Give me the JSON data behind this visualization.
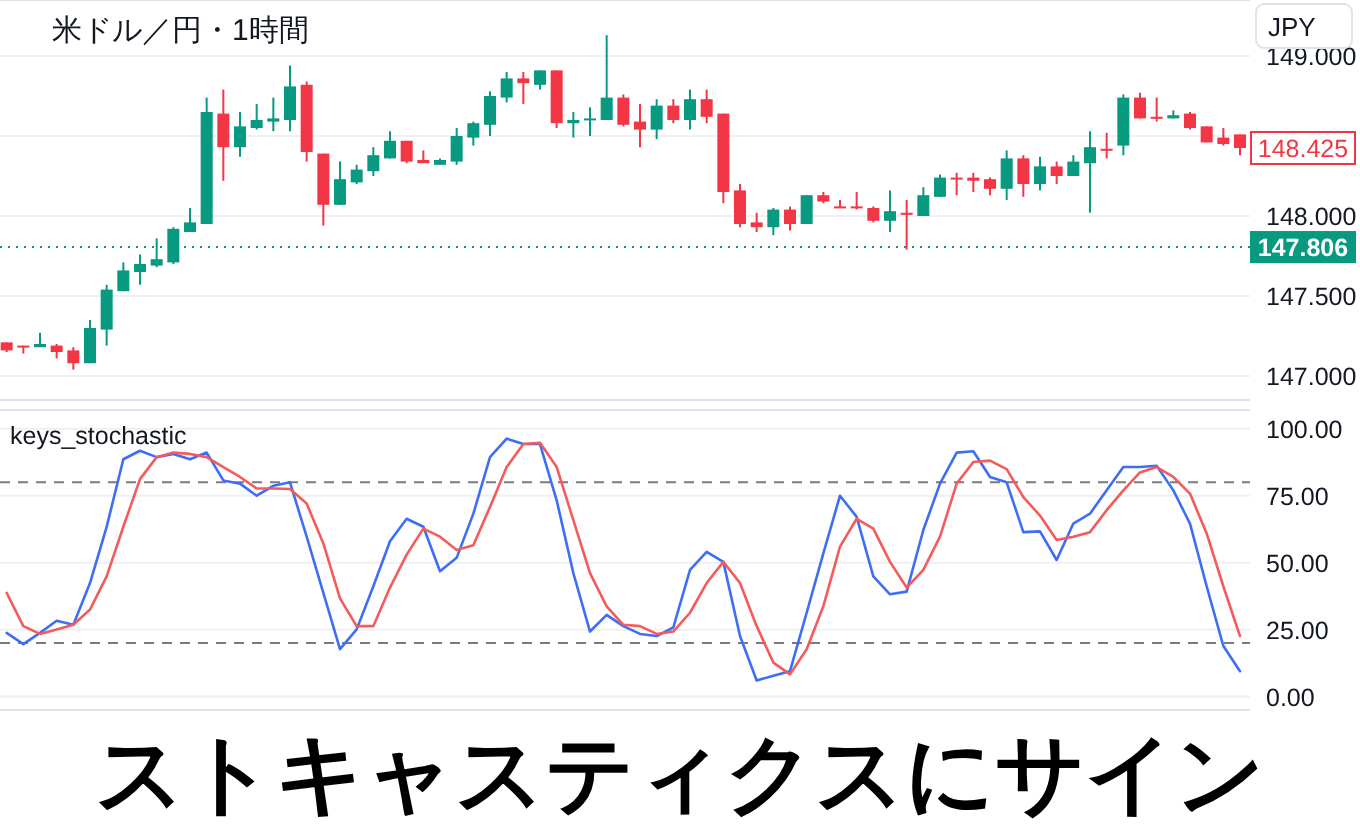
{
  "chart_data": [
    {
      "type": "candlestick",
      "title": "米ドル／円・1時間",
      "categories": [
        null,
        null,
        null,
        null,
        null,
        null,
        null,
        null,
        null,
        null,
        null,
        null,
        null,
        null,
        null,
        null,
        null,
        null,
        null,
        null,
        null,
        null,
        null,
        null,
        null,
        null,
        null,
        null,
        null,
        null,
        null,
        null,
        null,
        null,
        null,
        null,
        null,
        null,
        null,
        null,
        null,
        null,
        null,
        null,
        null,
        null,
        null,
        null,
        null,
        null,
        null,
        null,
        null,
        null,
        null,
        null,
        null,
        null,
        null,
        null,
        null,
        null,
        null,
        null,
        null,
        null,
        null,
        null,
        null,
        null,
        null,
        null,
        null,
        null,
        null
      ],
      "ohlc": [
        [
          147.21,
          147.21,
          147.15,
          147.16
        ],
        [
          147.19,
          147.19,
          147.14,
          147.18
        ],
        [
          147.18,
          147.27,
          147.18,
          147.2
        ],
        [
          147.19,
          147.2,
          147.11,
          147.15
        ],
        [
          147.16,
          147.18,
          147.04,
          147.08
        ],
        [
          147.08,
          147.35,
          147.08,
          147.3
        ],
        [
          147.29,
          147.57,
          147.19,
          147.54
        ],
        [
          147.53,
          147.71,
          147.53,
          147.66
        ],
        [
          147.65,
          147.76,
          147.57,
          147.7
        ],
        [
          147.69,
          147.86,
          147.68,
          147.73
        ],
        [
          147.71,
          147.93,
          147.7,
          147.92
        ],
        [
          147.9,
          148.05,
          147.9,
          147.96
        ],
        [
          147.95,
          148.74,
          147.95,
          148.65
        ],
        [
          148.64,
          148.79,
          148.22,
          148.43
        ],
        [
          148.43,
          148.65,
          148.37,
          148.56
        ],
        [
          148.55,
          148.7,
          148.54,
          148.6
        ],
        [
          148.59,
          148.74,
          148.53,
          148.61
        ],
        [
          148.6,
          148.94,
          148.53,
          148.81
        ],
        [
          148.82,
          148.84,
          148.34,
          148.4
        ],
        [
          148.39,
          148.39,
          147.94,
          148.07
        ],
        [
          148.07,
          148.34,
          148.07,
          148.23
        ],
        [
          148.21,
          148.32,
          148.2,
          148.29
        ],
        [
          148.28,
          148.43,
          148.25,
          148.38
        ],
        [
          148.36,
          148.53,
          148.36,
          148.47
        ],
        [
          148.47,
          148.47,
          148.33,
          148.34
        ],
        [
          148.35,
          148.41,
          148.33,
          148.33
        ],
        [
          148.32,
          148.36,
          148.32,
          148.35
        ],
        [
          148.34,
          148.55,
          148.32,
          148.5
        ],
        [
          148.49,
          148.59,
          148.44,
          148.58
        ],
        [
          148.57,
          148.78,
          148.5,
          148.75
        ],
        [
          148.74,
          148.9,
          148.71,
          148.86
        ],
        [
          148.86,
          148.9,
          148.7,
          148.83
        ],
        [
          148.82,
          148.91,
          148.79,
          148.91
        ],
        [
          148.91,
          148.91,
          148.55,
          148.58
        ],
        [
          148.58,
          148.65,
          148.49,
          148.6
        ],
        [
          148.6,
          148.68,
          148.5,
          148.61
        ],
        [
          148.6,
          149.13,
          148.6,
          148.74
        ],
        [
          148.74,
          148.76,
          148.56,
          148.57
        ],
        [
          148.59,
          148.7,
          148.43,
          148.54
        ],
        [
          148.54,
          148.73,
          148.48,
          148.69
        ],
        [
          148.69,
          148.73,
          148.58,
          148.6
        ],
        [
          148.6,
          148.79,
          148.54,
          148.73
        ],
        [
          148.73,
          148.79,
          148.58,
          148.62
        ],
        [
          148.64,
          148.64,
          148.08,
          148.15
        ],
        [
          148.16,
          148.2,
          147.93,
          147.95
        ],
        [
          147.96,
          148.02,
          147.9,
          147.93
        ],
        [
          147.93,
          148.05,
          147.88,
          148.04
        ],
        [
          148.04,
          148.06,
          147.91,
          147.95
        ],
        [
          147.95,
          148.13,
          147.95,
          148.13
        ],
        [
          148.13,
          148.15,
          148.08,
          148.09
        ],
        [
          148.06,
          148.1,
          148.05,
          148.05
        ],
        [
          148.06,
          148.15,
          148.04,
          148.05
        ],
        [
          148.05,
          148.06,
          147.96,
          147.97
        ],
        [
          147.97,
          148.16,
          147.9,
          148.03
        ],
        [
          148.02,
          148.1,
          147.79,
          148.01
        ],
        [
          148.0,
          148.18,
          148.0,
          148.13
        ],
        [
          148.12,
          148.26,
          148.12,
          148.24
        ],
        [
          148.24,
          148.27,
          148.13,
          148.23
        ],
        [
          148.24,
          148.27,
          148.15,
          148.22
        ],
        [
          148.23,
          148.24,
          148.13,
          148.17
        ],
        [
          148.17,
          148.41,
          148.1,
          148.36
        ],
        [
          148.36,
          148.38,
          148.12,
          148.2
        ],
        [
          148.2,
          148.37,
          148.16,
          148.31
        ],
        [
          148.31,
          148.34,
          148.2,
          148.25
        ],
        [
          148.25,
          148.38,
          148.25,
          148.34
        ],
        [
          148.33,
          148.53,
          148.02,
          148.43
        ],
        [
          148.42,
          148.52,
          148.36,
          148.41
        ],
        [
          148.44,
          148.76,
          148.38,
          148.74
        ],
        [
          148.74,
          148.77,
          148.61,
          148.61
        ],
        [
          148.62,
          148.74,
          148.59,
          148.61
        ],
        [
          148.61,
          148.66,
          148.61,
          148.63
        ],
        [
          148.64,
          148.65,
          148.54,
          148.55
        ],
        [
          148.56,
          148.56,
          148.46,
          148.46
        ],
        [
          148.49,
          148.55,
          148.44,
          148.45
        ],
        [
          148.51,
          148.51,
          148.38,
          148.425
        ]
      ],
      "colors": [
        "#f23645",
        "#f23645",
        "#089981",
        "#f23645",
        "#f23645",
        "#089981",
        "#089981",
        "#089981",
        "#089981",
        "#089981",
        "#089981",
        "#089981",
        "#089981",
        "#f23645",
        "#089981",
        "#089981",
        "#089981",
        "#089981",
        "#f23645",
        "#f23645",
        "#089981",
        "#089981",
        "#089981",
        "#089981",
        "#f23645",
        "#f23645",
        "#089981",
        "#089981",
        "#089981",
        "#089981",
        "#089981",
        "#f23645",
        "#089981",
        "#f23645",
        "#089981",
        "#089981",
        "#089981",
        "#f23645",
        "#f23645",
        "#089981",
        "#f23645",
        "#089981",
        "#f23645",
        "#f23645",
        "#f23645",
        "#f23645",
        "#089981",
        "#f23645",
        "#089981",
        "#f23645",
        "#f23645",
        "#f23645",
        "#f23645",
        "#089981",
        "#f23645",
        "#089981",
        "#089981",
        "#f23645",
        "#f23645",
        "#f23645",
        "#089981",
        "#f23645",
        "#089981",
        "#f23645",
        "#089981",
        "#089981",
        "#f23645",
        "#089981",
        "#f23645",
        "#f23645",
        "#089981",
        "#f23645",
        "#f23645",
        "#f23645",
        "#f23645"
      ],
      "ylim": [
        146.85,
        149.35
      ],
      "yticks": [
        {
          "value": 147,
          "label": "147.000"
        },
        {
          "value": 147.5,
          "label": "147.500"
        },
        {
          "value": 148,
          "label": "148.000"
        },
        {
          "value": 148.5,
          "label": null
        },
        {
          "value": 149,
          "label": "149.000"
        }
      ],
      "ref_lines": [
        {
          "axis": "y",
          "value": 147.806,
          "label": "147.806",
          "color": "#089981",
          "line_style": "dotted"
        }
      ],
      "annotations": [
        "148.425",
        "JPY"
      ],
      "grid": "y",
      "tick_labels": "y"
    },
    {
      "type": "line",
      "title": "keys_stochastic",
      "categories": [
        null,
        null,
        null,
        null,
        null,
        null,
        null,
        null,
        null,
        null,
        null,
        null,
        null,
        null,
        null,
        null,
        null,
        null,
        null,
        null,
        null,
        null,
        null,
        null,
        null,
        null,
        null,
        null,
        null,
        null,
        null,
        null,
        null,
        null,
        null,
        null,
        null,
        null,
        null,
        null,
        null,
        null,
        null,
        null,
        null,
        null,
        null,
        null,
        null,
        null,
        null,
        null,
        null,
        null,
        null,
        null,
        null,
        null,
        null,
        null,
        null,
        null,
        null,
        null,
        null,
        null,
        null,
        null,
        null,
        null,
        null,
        null,
        null,
        null,
        null
      ],
      "series": [
        {
          "color": "#3d6ef5",
          "values": [
            23.8,
            19.6,
            23.8,
            28.3,
            26.8,
            42.4,
            63.4,
            88.6,
            91.8,
            89.4,
            90.6,
            88.6,
            91.1,
            80.7,
            79.5,
            75,
            78.7,
            80,
            59.7,
            38.7,
            17.7,
            25.1,
            41.2,
            58,
            66.4,
            63.4,
            46.8,
            51.8,
            68.3,
            89.4,
            96.3,
            94.3,
            94.3,
            73.3,
            46.1,
            24.3,
            30.5,
            26.3,
            23.4,
            22.6,
            25.8,
            47.3,
            54,
            50.3,
            22.6,
            6,
            7.8,
            9.5,
            31.3,
            53.5,
            75,
            67.1,
            44.9,
            38.2,
            39.2,
            62.2,
            79.5,
            91.1,
            91.6,
            82,
            80,
            61.4,
            61.7,
            51,
            64.6,
            68.3,
            77,
            85.7,
            85.7,
            86.2,
            77,
            64.6,
            41.2,
            18.9,
            9.5
          ]
        },
        {
          "color": "#f45b5b",
          "values": [
            38.7,
            26.3,
            23.4,
            25.1,
            26.8,
            32.5,
            44.9,
            63.4,
            81.2,
            89.4,
            91.1,
            90.6,
            89.4,
            85.7,
            82,
            77.7,
            77.7,
            77.5,
            72.1,
            57.2,
            36.7,
            26.3,
            26.3,
            40.7,
            53,
            62.7,
            59.7,
            54.7,
            56.5,
            70.8,
            85.7,
            94.3,
            94.8,
            85.7,
            65.9,
            46.1,
            33.7,
            26.8,
            26.3,
            23.4,
            24.3,
            31.3,
            42.4,
            50.3,
            42.4,
            26.3,
            12.7,
            8.3,
            17.7,
            33.7,
            56,
            66.4,
            62.7,
            50.3,
            40.7,
            47.3,
            59.7,
            79.5,
            87.6,
            88.1,
            84.9,
            74.5,
            67.6,
            58.5,
            59.7,
            61.4,
            69.6,
            77,
            83.7,
            85.7,
            82,
            75.8,
            60.9,
            41.2,
            22.6
          ]
        }
      ],
      "ylim": [
        -5,
        107
      ],
      "yticks": [
        {
          "value": 0,
          "label": "0.00"
        },
        {
          "value": 25,
          "label": "25.00"
        },
        {
          "value": 50,
          "label": "50.00"
        },
        {
          "value": 75,
          "label": "75.00"
        },
        {
          "value": 100,
          "label": "100.00"
        }
      ],
      "ref_lines": [
        {
          "axis": "y",
          "value": 80,
          "color": "#787b86",
          "line_style": "dashed"
        },
        {
          "axis": "y",
          "value": 20,
          "color": "#787b86",
          "line_style": "dashed"
        }
      ],
      "annotations": [
        "ストキャスティクスにサイン"
      ],
      "grid": "y",
      "tick_labels": "y"
    }
  ]
}
